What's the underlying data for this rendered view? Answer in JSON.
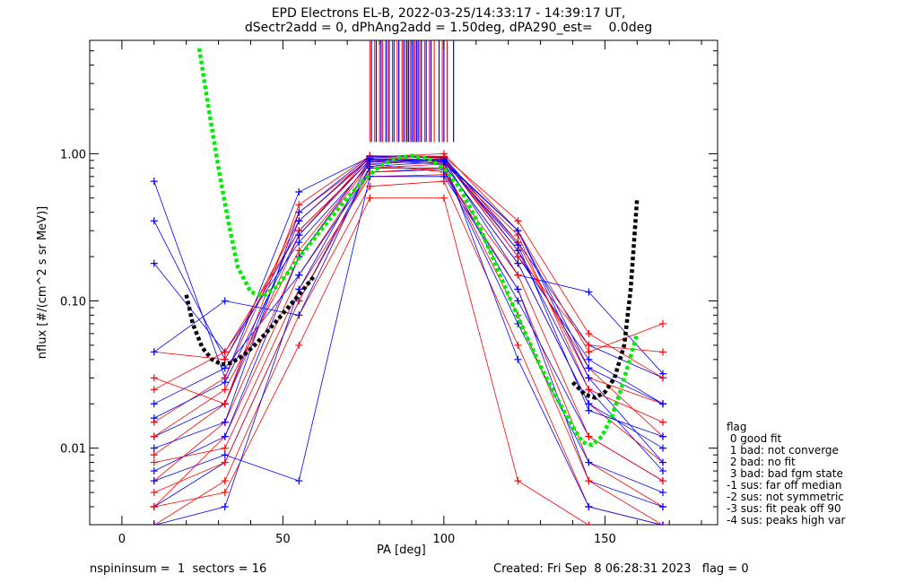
{
  "title_line1": "EPD Electrons EL-B, 2022-03-25/14:33:17 - 14:39:17 UT,",
  "title_line2": "dSectr2add = 0, dPhAng2add = 1.50deg, dPA290_est=    0.0deg",
  "footer_left": "nspininsum =  1  sectors = 16",
  "footer_right": "Created: Fri Sep  8 06:28:31 2023   flag = 0",
  "flag_legend": {
    "heading": "flag",
    "items": [
      " 0 good fit",
      " 1 bad: not converge",
      " 2 bad: no fit",
      " 3 bad: bad fgm state",
      "-1 sus: far off median",
      "-2 sus: not symmetric",
      "-3 sus: fit peak off 90",
      "-4 sus: peaks high var"
    ]
  },
  "colors": {
    "series_a": "#ff0000",
    "series_b": "#0000ff",
    "fit": "#00ee00",
    "trend": "#000000"
  },
  "chart_data": {
    "type": "line",
    "xlabel": "PA [deg]",
    "ylabel": "nflux [#/(cm^2 s sr MeV)]",
    "xlim": [
      -10,
      185
    ],
    "ylim_log10": [
      -2.52,
      0.77
    ],
    "scale_y": "log",
    "x_ticks": [
      0,
      50,
      100,
      150
    ],
    "x_tick_labels": [
      "0",
      "50",
      "100",
      "150"
    ],
    "y_ticks": [
      0.01,
      0.1,
      1.0
    ],
    "y_tick_labels": [
      "0.01",
      "0.10",
      "1.00"
    ],
    "pa_sectors": [
      10,
      32,
      55,
      77,
      100,
      123,
      145,
      168
    ],
    "sample_curves": {
      "red": [
        [
          0.009,
          0.02,
          0.28,
          0.95,
          0.9,
          0.22,
          0.035,
          0.012
        ],
        [
          0.004,
          0.012,
          0.15,
          0.8,
          0.85,
          0.18,
          0.02,
          0.008
        ],
        [
          0.045,
          0.04,
          0.35,
          0.95,
          1.0,
          0.3,
          0.045,
          0.07
        ],
        [
          0.006,
          0.015,
          0.2,
          0.85,
          0.75,
          0.12,
          0.008,
          0.004
        ],
        [
          0.003,
          0.006,
          0.08,
          0.6,
          0.65,
          0.05,
          0.004,
          0.003
        ],
        [
          0.015,
          0.03,
          0.4,
          0.92,
          0.88,
          0.25,
          0.03,
          0.02
        ],
        [
          0.008,
          0.01,
          0.12,
          0.7,
          0.72,
          0.15,
          0.012,
          0.006
        ],
        [
          0.025,
          0.045,
          0.3,
          0.9,
          0.93,
          0.2,
          0.05,
          0.045
        ],
        [
          0.005,
          0.008,
          0.1,
          0.75,
          0.8,
          0.08,
          0.006,
          0.003
        ],
        [
          0.012,
          0.025,
          0.22,
          0.88,
          0.86,
          0.28,
          0.025,
          0.015
        ],
        [
          0.004,
          0.005,
          0.05,
          0.5,
          0.5,
          0.006,
          0.003,
          0.003
        ],
        [
          0.03,
          0.02,
          0.45,
          0.97,
          0.96,
          0.35,
          0.06,
          0.03
        ]
      ],
      "blue": [
        [
          0.65,
          0.03,
          0.55,
          0.95,
          0.95,
          0.25,
          0.05,
          0.03
        ],
        [
          0.35,
          0.04,
          0.3,
          0.9,
          0.92,
          0.2,
          0.04,
          0.02
        ],
        [
          0.18,
          0.045,
          0.25,
          0.85,
          0.9,
          0.15,
          0.115,
          0.032
        ],
        [
          0.007,
          0.012,
          0.2,
          0.9,
          0.85,
          0.18,
          0.02,
          0.01
        ],
        [
          0.004,
          0.008,
          0.1,
          0.8,
          0.8,
          0.1,
          0.012,
          0.006
        ],
        [
          0.012,
          0.02,
          0.35,
          0.93,
          0.9,
          0.3,
          0.03,
          0.008
        ],
        [
          0.02,
          0.035,
          0.15,
          0.75,
          0.78,
          0.07,
          0.008,
          0.005
        ],
        [
          0.006,
          0.009,
          0.006,
          0.7,
          0.7,
          0.12,
          0.006,
          0.004
        ],
        [
          0.01,
          0.015,
          0.4,
          0.96,
          0.94,
          0.22,
          0.025,
          0.007
        ],
        [
          0.045,
          0.1,
          0.08,
          0.82,
          0.88,
          0.3,
          0.035,
          0.02
        ],
        [
          0.003,
          0.004,
          0.12,
          0.88,
          0.9,
          0.04,
          0.004,
          0.003
        ],
        [
          0.016,
          0.028,
          0.28,
          0.91,
          0.89,
          0.24,
          0.018,
          0.012
        ]
      ]
    },
    "fit_curve_green": {
      "x": [
        24,
        27,
        30,
        33,
        36,
        40,
        44,
        48,
        52,
        56,
        60,
        65,
        70,
        75,
        80,
        85,
        90,
        95,
        100,
        105,
        110,
        115,
        120,
        125,
        130,
        135,
        140,
        143,
        146,
        149,
        152,
        155,
        158,
        160
      ],
      "y": [
        5.2,
        2.0,
        0.8,
        0.35,
        0.17,
        0.115,
        0.108,
        0.125,
        0.16,
        0.21,
        0.27,
        0.37,
        0.5,
        0.66,
        0.82,
        0.93,
        0.97,
        0.93,
        0.8,
        0.58,
        0.36,
        0.2,
        0.11,
        0.062,
        0.036,
        0.022,
        0.014,
        0.011,
        0.0105,
        0.012,
        0.016,
        0.025,
        0.042,
        0.06
      ]
    },
    "fit_curve_black": {
      "x": [
        20,
        22,
        25,
        28,
        31,
        34,
        38,
        42,
        46,
        50,
        55,
        60,
        140,
        144,
        147,
        150,
        153,
        156,
        158,
        160
      ],
      "y": [
        0.11,
        0.07,
        0.048,
        0.04,
        0.037,
        0.038,
        0.043,
        0.052,
        0.065,
        0.082,
        0.11,
        0.15,
        0.028,
        0.023,
        0.022,
        0.024,
        0.03,
        0.05,
        0.12,
        0.5
      ]
    },
    "spike_lines": {
      "red_x": [
        77,
        78.5,
        80,
        81,
        82.5,
        84,
        85.5,
        87,
        88,
        89.5,
        91,
        92.5,
        94,
        95.5,
        97,
        99.5,
        101
      ],
      "blue_x": [
        77.5,
        79,
        80.5,
        82,
        83,
        84.5,
        86,
        87.5,
        88.5,
        89,
        90,
        90.5,
        91.5,
        92,
        93,
        94.5,
        96,
        98.5,
        100,
        103
      ],
      "y_bottom": 1.2
    }
  }
}
